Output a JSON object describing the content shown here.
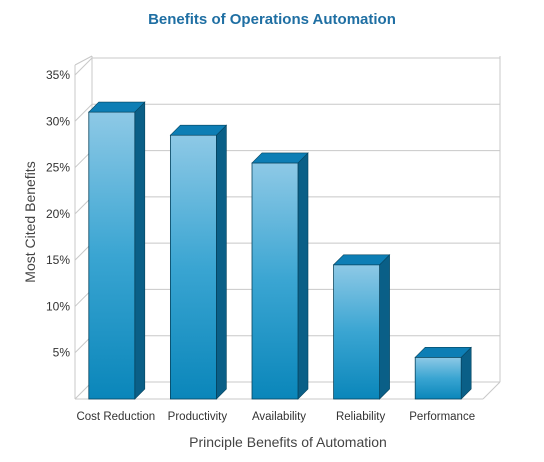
{
  "chart_data": {
    "type": "bar",
    "title": "Benefits of Operations Automation",
    "xlabel": "Principle Benefits of Automation",
    "ylabel": "Most Cited Benefits",
    "categories": [
      "Cost Reduction",
      "Productivity",
      "Availability",
      "Reliability",
      "Performance"
    ],
    "values": [
      31,
      28.5,
      25.5,
      14.5,
      4.5
    ],
    "ylim": [
      0,
      35
    ],
    "yticks": [
      5,
      10,
      15,
      20,
      25,
      30,
      35
    ],
    "ytick_labels": [
      "5%",
      "10%",
      "15%",
      "20%",
      "25%",
      "30%",
      "35%"
    ],
    "grid": true,
    "legend": "none",
    "style": "3d-bar",
    "colors": {
      "title": "#1f6fa3",
      "bar_top": "#8ec9e6",
      "bar_bottom": "#0a86ba",
      "bar_side": "#0a5f87",
      "bar_cap": "#0d7eb5",
      "grid": "#c8c8c8",
      "axis_text": "#333333"
    }
  }
}
